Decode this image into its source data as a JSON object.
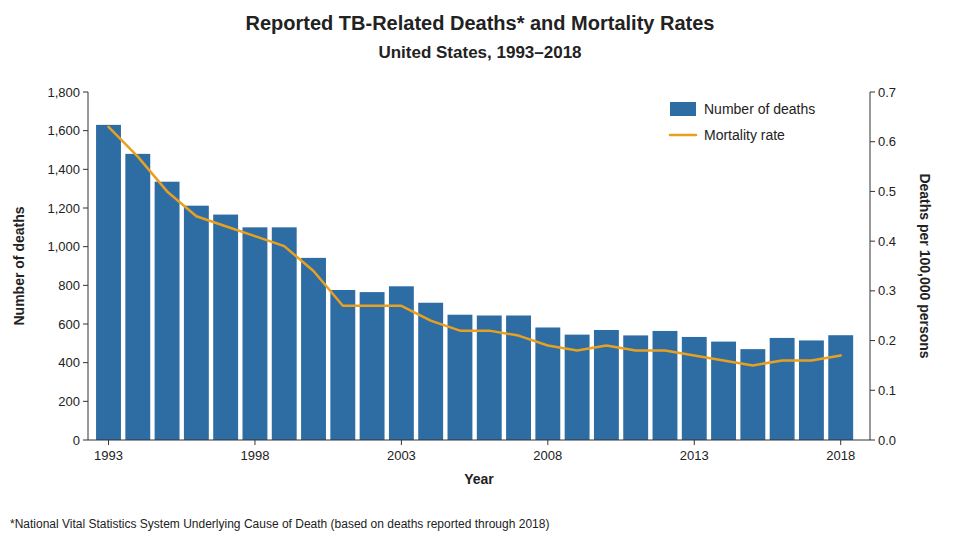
{
  "chart_data": {
    "type": "bar",
    "title": "Reported TB-Related Deaths* and Mortality Rates",
    "subtitle": "United States, 1993–2018",
    "x_label": "Year",
    "y_label": "Number of deaths",
    "y2_label": "Deaths per 100,000 persons",
    "x": [
      1993,
      1994,
      1995,
      1996,
      1997,
      1998,
      1999,
      2000,
      2001,
      2002,
      2003,
      2004,
      2005,
      2006,
      2007,
      2008,
      2009,
      2010,
      2011,
      2012,
      2013,
      2014,
      2015,
      2016,
      2017,
      2018
    ],
    "series": [
      {
        "name": "Number of deaths",
        "type": "bar",
        "color": "#2E6DA4",
        "values": [
          1630,
          1480,
          1336,
          1212,
          1166,
          1100,
          1100,
          942,
          776,
          765,
          795,
          710,
          648,
          644,
          644,
          582,
          545,
          569,
          541,
          564,
          533,
          509,
          470,
          528,
          515,
          542
        ]
      },
      {
        "name": "Mortality rate",
        "type": "line",
        "axis": "y2",
        "color": "#E8A020",
        "values": [
          0.63,
          0.57,
          0.5,
          0.45,
          0.43,
          0.41,
          0.39,
          0.34,
          0.27,
          0.27,
          0.27,
          0.24,
          0.22,
          0.22,
          0.21,
          0.19,
          0.18,
          0.19,
          0.18,
          0.18,
          0.17,
          0.16,
          0.15,
          0.16,
          0.16,
          0.17
        ]
      }
    ],
    "xlim": [
      1992.3,
      2019.0
    ],
    "xticks": [
      1993,
      1998,
      2003,
      2008,
      2013,
      2018
    ],
    "ylim": [
      0,
      1800
    ],
    "yticks": [
      0,
      200,
      400,
      600,
      800,
      {
        "value": 1000,
        "label": "1,000"
      },
      {
        "value": 1200,
        "label": "1,200"
      },
      {
        "value": 1400,
        "label": "1,400"
      },
      {
        "value": 1600,
        "label": "1,600"
      },
      {
        "value": 1800,
        "label": "1,800"
      }
    ],
    "y2lim": [
      0,
      0.7
    ],
    "y2ticks": [
      {
        "value": 0.0,
        "label": "0.0"
      },
      0.1,
      0.2,
      0.3,
      0.4,
      0.5,
      0.6,
      0.7
    ],
    "grid": false,
    "legend": "top-right",
    "annotations": [
      "*National Vital Statistics System Underlying Cause of Death (based on deaths reported through 2018)"
    ]
  }
}
